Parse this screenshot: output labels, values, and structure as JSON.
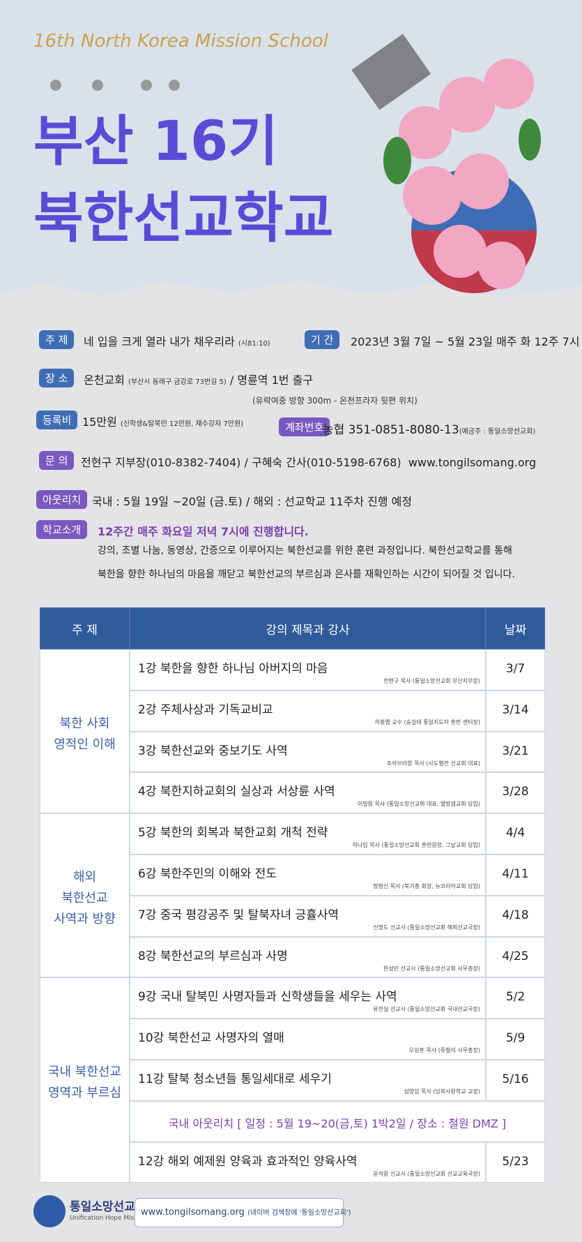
{
  "header": {
    "subtitle": "16th North Korea Mission School",
    "title_line1": "부산 16기",
    "title_line2": "북한선교학교"
  },
  "info": {
    "theme": {
      "label": "주 제",
      "text": "네 입을 크게 열라 내가 채우리라",
      "note": "(시81:10)"
    },
    "period": {
      "label": "기 간",
      "text": "2023년 3월 7일 ~ 5월 23일 매주 화 12주 7시"
    },
    "place": {
      "label": "장 소",
      "text": "온천교회",
      "note": "(부산시 동래구 금강로 73번길 5)",
      "text2": "/ 명륜역 1번 출구",
      "note2": "(유락여중 방향 300m - 온천프라자 뒷편 위치)"
    },
    "fee": {
      "label": "등록비",
      "text": "15만원",
      "note": "(신학생&탈북민 12만원, 재수강자 7만원)"
    },
    "account": {
      "label": "계좌번호",
      "text": "농협 351-0851-8080-13",
      "note": "(예금주 : 통일소망선교회)"
    },
    "contact": {
      "label": "문 의",
      "text": "전현구 지부장(010-8382-7404) / 구혜숙 간사(010-5198-6768)",
      "url": "www.tongilsomang.org"
    },
    "outreach": {
      "label": "아웃리치",
      "text": "국내 : 5월 19일 ~20일 (금.토) / 해외 : 선교학교 11주차 진행 예정"
    },
    "intro": {
      "label": "학교소개",
      "highlight": "12주간 매주 화요일 저녁 7시에 진행합니다.",
      "lines": [
        "강의, 조별 나눔, 동영상, 간증으로 이루어지는 북한선교를 위한 훈련 과정입니다. 북한선교학교를 통해",
        "북한을 향한 하나님의 마음을 깨닫고 북한선교의 부르심과 은사를 재확인하는 시간이 되어질 것 입니다."
      ]
    }
  },
  "table": {
    "headers": [
      "주 제",
      "강의 제목과  강사",
      "날짜"
    ],
    "groups": [
      {
        "title_lines": [
          "북한 사회",
          "영적인 이해"
        ],
        "rows": [
          {
            "lecture": "1강  북한을 향한 하나님 아버지의 마음",
            "speaker": "전현구 목사 (통일소망선교회 부산지부장)",
            "date": "3/7"
          },
          {
            "lecture": "2강  주체사상과 기독교비교",
            "speaker": "하충엽 교수 (숭실대 통일지도자 훈련 센터장)",
            "date": "3/14"
          },
          {
            "lecture": "3강  북한선교와 중보기도 사역",
            "speaker": "조아브라함 목사 (사도행전 선교회 대표)",
            "date": "3/21"
          },
          {
            "lecture": "4강  북한지하교회의 실상과 서상륜 사역",
            "speaker": "이빌립 목사 (통일소망선교회 대표, 열방샘교회 담임)",
            "date": "3/28"
          }
        ]
      },
      {
        "title_lines": [
          "해외",
          "북한선교",
          "사역과 방향"
        ],
        "rows": [
          {
            "lecture": "5강  북한의 회복과 북한교회 개척 전략",
            "speaker": "하나임 목사 (통일소망선교회 훈련원장, 그날교회 담임)",
            "date": "4/4"
          },
          {
            "lecture": "6강  북한주민의 이해와 전도",
            "speaker": "정형신 목사 (북기총 회장, 뉴코리아교회 담임)",
            "date": "4/11"
          },
          {
            "lecture": "7강  중국 평강공주 및 탈북자녀 긍휼사역",
            "speaker": "신명도 선교사 (통일소망선교회 해외선교국장)",
            "date": "4/18"
          },
          {
            "lecture": "8강  북한선교의 부르심과 사명",
            "speaker": "한성민 선교사 (통일소망선교회 사무총장)",
            "date": "4/25"
          }
        ]
      },
      {
        "title_lines": [
          "국내 북한선교",
          "영역과 부르심"
        ],
        "rows": [
          {
            "lecture": "9강  국내 탈북민 사명자들과 신학생들을 세우는 사역",
            "speaker": "유진실 선교사 (통일소망선교회 국내선교국장)",
            "date": "5/2"
          },
          {
            "lecture": "10강  북한선교 사명자의 열매",
            "speaker": "오성훈 목사 (쥬빌리 사무총장)",
            "date": "5/9"
          },
          {
            "lecture": "11강  탈북 청소년들 통일세대로 세우기",
            "speaker": "심양섭 목사 (남북사랑학교 교장)",
            "date": "5/16"
          },
          {
            "notice": "국내 아웃리치 [ 일정 : 5월 19~20(금,토) 1박2일 / 장소 : 철원 DMZ ]"
          },
          {
            "lecture": "12강  해외 예제원 양육과 효과적인 양육사역",
            "speaker": "윤석랑 선교사 (통일소망선교회 선교교육국장)",
            "date": "5/23"
          }
        ]
      }
    ]
  },
  "footer": {
    "org": "통일소망선교회",
    "org_en": "Unification Hope Mission",
    "url": "www.tongilsomang.org",
    "search": "(네이버 검색창에 '통일소망선교회')"
  }
}
